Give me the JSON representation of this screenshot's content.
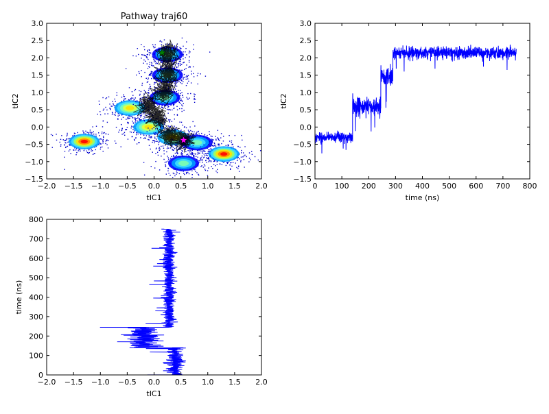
{
  "chart_data": [
    {
      "type": "scatter",
      "title": "Pathway traj60",
      "xlabel": "tIC1",
      "ylabel": "tIC2",
      "xlim": [
        -2.0,
        2.0
      ],
      "ylim": [
        -1.5,
        3.0
      ],
      "xticks": [
        "−2.0",
        "−1.5",
        "−1.0",
        "−0.5",
        "0.0",
        "0.5",
        "1.0",
        "1.5",
        "2.0"
      ],
      "yticks": [
        "−1.5",
        "−1.0",
        "−0.5",
        "0.0",
        "0.5",
        "1.0",
        "1.5",
        "2.0",
        "2.5",
        "3.0"
      ],
      "density_clusters": [
        {
          "x": -1.3,
          "y": -0.42,
          "intensity": "high"
        },
        {
          "x": -0.1,
          "y": 0.0,
          "intensity": "medium"
        },
        {
          "x": -0.45,
          "y": 0.55,
          "intensity": "medium"
        },
        {
          "x": 0.2,
          "y": 0.85,
          "intensity": "low"
        },
        {
          "x": 0.25,
          "y": 2.1,
          "intensity": "low"
        },
        {
          "x": 0.25,
          "y": 1.5,
          "intensity": "low"
        },
        {
          "x": 0.35,
          "y": -0.3,
          "intensity": "medium"
        },
        {
          "x": 0.8,
          "y": -0.45,
          "intensity": "low"
        },
        {
          "x": 1.3,
          "y": -0.78,
          "intensity": "high"
        },
        {
          "x": 0.55,
          "y": -1.05,
          "intensity": "low"
        }
      ],
      "markers": [
        {
          "name": "start",
          "x": 0.15,
          "y": 2.15,
          "color": "#008000",
          "symbol": "star"
        },
        {
          "name": "end",
          "x": 0.55,
          "y": -0.38,
          "color": "#ff00ff",
          "symbol": "star"
        }
      ],
      "trajectory_color": "#000000",
      "grid": false
    },
    {
      "type": "line",
      "xlabel": "time (ns)",
      "ylabel": "tIC2",
      "xlim": [
        0,
        800
      ],
      "ylim": [
        -1.5,
        3.0
      ],
      "xticks": [
        "0",
        "100",
        "200",
        "300",
        "400",
        "500",
        "600",
        "700",
        "800"
      ],
      "yticks": [
        "−1.5",
        "−1.0",
        "−0.5",
        "0.0",
        "0.5",
        "1.0",
        "1.5",
        "2.0",
        "2.5",
        "3.0"
      ],
      "color": "#0000ff",
      "segments": [
        {
          "t_start": 0,
          "t_end": 140,
          "mean": -0.3,
          "spread": 0.12
        },
        {
          "t_start": 140,
          "t_end": 245,
          "mean": 0.6,
          "spread": 0.25
        },
        {
          "t_start": 245,
          "t_end": 290,
          "mean": 1.45,
          "spread": 0.25
        },
        {
          "t_start": 290,
          "t_end": 750,
          "mean": 2.15,
          "spread": 0.15
        }
      ],
      "grid": false
    },
    {
      "type": "line",
      "xlabel": "tIC1",
      "ylabel": "time (ns)",
      "xlim": [
        -2.0,
        2.0
      ],
      "ylim": [
        0,
        800
      ],
      "xticks": [
        "−2.0",
        "−1.5",
        "−1.0",
        "−0.5",
        "0.0",
        "0.5",
        "1.0",
        "1.5",
        "2.0"
      ],
      "yticks": [
        "0",
        "100",
        "200",
        "300",
        "400",
        "500",
        "600",
        "700",
        "800"
      ],
      "color": "#0000ff",
      "segments": [
        {
          "t_start": 0,
          "t_end": 140,
          "mean": 0.4,
          "spread": 0.15
        },
        {
          "t_start": 140,
          "t_end": 245,
          "mean": -0.2,
          "spread": 0.25
        },
        {
          "t_start": 245,
          "t_end": 750,
          "mean": 0.28,
          "spread": 0.1
        }
      ],
      "grid": false
    }
  ]
}
